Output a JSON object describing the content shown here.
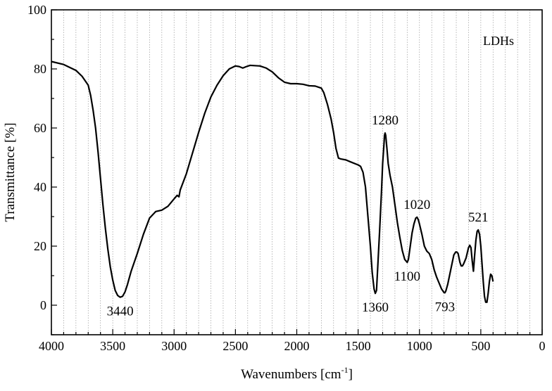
{
  "chart_data": {
    "type": "line",
    "title": "",
    "xlabel": "Wavenumbers [cm",
    "xlabel_sup": "-1",
    "xlabel_tail": "]",
    "ylabel": "Transmittance [%]",
    "xlim": [
      4000,
      0
    ],
    "ylim": [
      -10,
      100
    ],
    "x_ticks": [
      4000,
      3500,
      3000,
      2500,
      2000,
      1500,
      1000,
      500,
      0
    ],
    "x_tick_labels": [
      "4000",
      "3500",
      "3000",
      "2500",
      "2000",
      "1500",
      "1000",
      "500",
      "0"
    ],
    "y_ticks": [
      0,
      20,
      40,
      60,
      80,
      100
    ],
    "y_tick_labels": [
      "0",
      "20",
      "40",
      "60",
      "80",
      "100"
    ],
    "grid": "vertical dotted",
    "legend": {
      "placement": "top-right",
      "entries": [
        "LDHs"
      ]
    },
    "series": [
      {
        "name": "LDHs",
        "color": "#000000",
        "points": [
          [
            4000,
            82.5
          ],
          [
            3900,
            81.5
          ],
          [
            3800,
            79.5
          ],
          [
            3750,
            77.5
          ],
          [
            3700,
            74.5
          ],
          [
            3680,
            71
          ],
          [
            3660,
            66
          ],
          [
            3640,
            60
          ],
          [
            3620,
            52
          ],
          [
            3600,
            43
          ],
          [
            3580,
            34
          ],
          [
            3560,
            26
          ],
          [
            3540,
            19
          ],
          [
            3520,
            13
          ],
          [
            3500,
            8.5
          ],
          [
            3480,
            5
          ],
          [
            3460,
            3.3
          ],
          [
            3440,
            2.7
          ],
          [
            3420,
            3
          ],
          [
            3400,
            4.5
          ],
          [
            3380,
            7
          ],
          [
            3350,
            11.5
          ],
          [
            3300,
            17.5
          ],
          [
            3250,
            24
          ],
          [
            3200,
            29.5
          ],
          [
            3150,
            31.7
          ],
          [
            3100,
            32.2
          ],
          [
            3050,
            33.5
          ],
          [
            3000,
            36
          ],
          [
            2975,
            37.2
          ],
          [
            2960,
            36.7
          ],
          [
            2950,
            39
          ],
          [
            2900,
            44.5
          ],
          [
            2850,
            51.5
          ],
          [
            2800,
            58.5
          ],
          [
            2750,
            65
          ],
          [
            2700,
            70.5
          ],
          [
            2650,
            74.5
          ],
          [
            2600,
            77.7
          ],
          [
            2550,
            80
          ],
          [
            2500,
            81
          ],
          [
            2470,
            80.8
          ],
          [
            2440,
            80.3
          ],
          [
            2410,
            80.8
          ],
          [
            2380,
            81.2
          ],
          [
            2300,
            81
          ],
          [
            2250,
            80.3
          ],
          [
            2200,
            79
          ],
          [
            2150,
            77
          ],
          [
            2100,
            75.5
          ],
          [
            2050,
            75
          ],
          [
            2000,
            75
          ],
          [
            1950,
            74.8
          ],
          [
            1900,
            74.3
          ],
          [
            1850,
            74.2
          ],
          [
            1800,
            73.5
          ],
          [
            1780,
            72
          ],
          [
            1750,
            68
          ],
          [
            1720,
            63
          ],
          [
            1700,
            58.5
          ],
          [
            1680,
            53
          ],
          [
            1660,
            49.8
          ],
          [
            1640,
            49.5
          ],
          [
            1600,
            49.2
          ],
          [
            1560,
            48.5
          ],
          [
            1500,
            47.5
          ],
          [
            1480,
            47
          ],
          [
            1460,
            45
          ],
          [
            1440,
            40
          ],
          [
            1420,
            30
          ],
          [
            1400,
            20
          ],
          [
            1385,
            11
          ],
          [
            1370,
            5.5
          ],
          [
            1360,
            4
          ],
          [
            1350,
            5
          ],
          [
            1340,
            13
          ],
          [
            1325,
            25
          ],
          [
            1310,
            38
          ],
          [
            1300,
            48
          ],
          [
            1290,
            54
          ],
          [
            1285,
            57.5
          ],
          [
            1280,
            58.3
          ],
          [
            1275,
            57.5
          ],
          [
            1265,
            53
          ],
          [
            1255,
            48
          ],
          [
            1240,
            44
          ],
          [
            1220,
            40
          ],
          [
            1200,
            34
          ],
          [
            1180,
            28
          ],
          [
            1160,
            23
          ],
          [
            1140,
            18.5
          ],
          [
            1120,
            15.5
          ],
          [
            1100,
            14.5
          ],
          [
            1090,
            15.5
          ],
          [
            1075,
            20
          ],
          [
            1060,
            24.5
          ],
          [
            1045,
            27.5
          ],
          [
            1030,
            29.5
          ],
          [
            1020,
            29.8
          ],
          [
            1010,
            29
          ],
          [
            1000,
            27.5
          ],
          [
            980,
            24
          ],
          [
            960,
            20
          ],
          [
            940,
            18.3
          ],
          [
            920,
            17.5
          ],
          [
            900,
            15.5
          ],
          [
            880,
            12
          ],
          [
            860,
            9.5
          ],
          [
            840,
            7.5
          ],
          [
            820,
            5.5
          ],
          [
            800,
            4.3
          ],
          [
            793,
            4.2
          ],
          [
            785,
            4.8
          ],
          [
            770,
            7
          ],
          [
            755,
            10
          ],
          [
            740,
            13
          ],
          [
            720,
            17
          ],
          [
            705,
            18
          ],
          [
            695,
            18
          ],
          [
            685,
            17.5
          ],
          [
            670,
            14.5
          ],
          [
            660,
            13.3
          ],
          [
            650,
            13.3
          ],
          [
            640,
            14
          ],
          [
            620,
            16
          ],
          [
            600,
            19.5
          ],
          [
            590,
            20.3
          ],
          [
            580,
            19.5
          ],
          [
            570,
            15
          ],
          [
            560,
            11.5
          ],
          [
            550,
            17
          ],
          [
            540,
            22
          ],
          [
            530,
            25
          ],
          [
            521,
            25.5
          ],
          [
            510,
            24
          ],
          [
            500,
            20
          ],
          [
            490,
            14
          ],
          [
            480,
            8
          ],
          [
            470,
            3
          ],
          [
            460,
            1
          ],
          [
            450,
            1
          ],
          [
            440,
            4
          ],
          [
            430,
            8
          ],
          [
            420,
            10.5
          ],
          [
            410,
            10
          ],
          [
            400,
            8
          ]
        ]
      }
    ],
    "annotations": [
      {
        "text": "3440",
        "x": 3440,
        "y": 2.7,
        "position": "below"
      },
      {
        "text": "1360",
        "x": 1360,
        "y": 4,
        "position": "below"
      },
      {
        "text": "1280",
        "x": 1280,
        "y": 58.3,
        "position": "above"
      },
      {
        "text": "1100",
        "x": 1100,
        "y": 14.5,
        "position": "below"
      },
      {
        "text": "1020",
        "x": 1020,
        "y": 29.8,
        "position": "above"
      },
      {
        "text": "793",
        "x": 793,
        "y": 4.2,
        "position": "below"
      },
      {
        "text": "521",
        "x": 521,
        "y": 25.5,
        "position": "above"
      }
    ]
  }
}
